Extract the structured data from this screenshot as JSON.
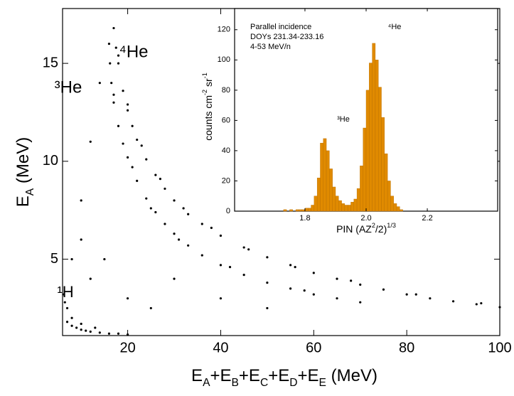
{
  "chart_data": [
    {
      "type": "scatter",
      "xlabel": [
        "E",
        "A",
        "+E",
        "B",
        "+E",
        "C",
        "+E",
        "D",
        "+E",
        "E",
        " (MeV)"
      ],
      "ylabel": [
        "E",
        "A",
        " (MeV)"
      ],
      "label_script": "sub",
      "annotations": [
        "⁴He",
        "³He",
        "¹H"
      ],
      "color": "#000000",
      "xlim": [
        6,
        100
      ],
      "ylim": [
        1.1,
        17.8
      ],
      "xticks": [
        20,
        40,
        60,
        80,
        100
      ],
      "yticks": [
        5,
        10,
        15
      ],
      "x": [
        17,
        17.5,
        18,
        19,
        20,
        21,
        22,
        24,
        26,
        28,
        30,
        33,
        36,
        40,
        45,
        50,
        55,
        60,
        65,
        70,
        75,
        80,
        85,
        90,
        95,
        100,
        18,
        20,
        23,
        27,
        32,
        38,
        46,
        56,
        68,
        82,
        96,
        16,
        16.2,
        16.5,
        17,
        18,
        19,
        20,
        22,
        24,
        26,
        28,
        30,
        33,
        36,
        40,
        45,
        50,
        55,
        60,
        65,
        70,
        17,
        21,
        25,
        31,
        42,
        58,
        7,
        7,
        8,
        9,
        10,
        11,
        12,
        14,
        16,
        18,
        6.5,
        6.3,
        8,
        10,
        13,
        20,
        10,
        12,
        14,
        10,
        30,
        20,
        40,
        15,
        25,
        50,
        12,
        8
      ],
      "y": [
        16.8,
        15.8,
        15,
        13.6,
        12.6,
        11.8,
        11.1,
        10.1,
        9.3,
        8.6,
        8.0,
        7.3,
        6.8,
        6.2,
        5.6,
        5.1,
        4.7,
        4.3,
        4.0,
        3.7,
        3.45,
        3.2,
        3.0,
        2.85,
        2.7,
        2.55,
        15.4,
        12.9,
        10.8,
        9.1,
        7.6,
        6.6,
        5.5,
        4.6,
        3.9,
        3.2,
        2.75,
        16,
        15,
        14,
        13,
        11.8,
        10.9,
        10.2,
        9.0,
        8.1,
        7.4,
        6.8,
        6.3,
        5.7,
        5.2,
        4.7,
        4.2,
        3.8,
        3.5,
        3.2,
        3.0,
        2.8,
        13.4,
        9.7,
        7.6,
        6.0,
        4.6,
        3.4,
        2.5,
        1.8,
        1.6,
        1.5,
        1.4,
        1.35,
        1.3,
        1.25,
        1.2,
        1.2,
        2.8,
        3.2,
        2.0,
        1.7,
        1.5,
        1.15,
        8,
        11,
        14,
        6,
        4,
        3,
        3,
        5,
        2.5,
        2.5,
        4,
        5
      ]
    },
    {
      "type": "histogram",
      "xlabel": [
        "PIN (AZ",
        "2",
        "/2)",
        "1/3"
      ],
      "ylabel": [
        "counts cm",
        "-2",
        " sr",
        "-1"
      ],
      "label_script": "sup",
      "annotations": [
        "Parallel incidence",
        "DOYs 231.34-233.16",
        "4-53 MeV/n",
        "³He",
        "⁴He"
      ],
      "color": "#e08a00",
      "xlim": [
        1.57,
        2.43
      ],
      "ylim": [
        0,
        134
      ],
      "xticks": [
        1.8,
        {
          "value": 2,
          "label": "2.0"
        },
        2.2
      ],
      "yticks": [
        0,
        20,
        40,
        60,
        80,
        100,
        120
      ],
      "bins": [
        1.7,
        1.71,
        1.72,
        1.73,
        1.74,
        1.75,
        1.76,
        1.77,
        1.78,
        1.79,
        1.8,
        1.81,
        1.82,
        1.83,
        1.84,
        1.85,
        1.86,
        1.87,
        1.88,
        1.89,
        1.9,
        1.91,
        1.92,
        1.93,
        1.94,
        1.95,
        1.96,
        1.97,
        1.98,
        1.99,
        2.0,
        2.01,
        2.02,
        2.03,
        2.04,
        2.05,
        2.06,
        2.07,
        2.08,
        2.09,
        2.1,
        2.11,
        2.12
      ],
      "values": [
        0,
        0,
        0,
        1,
        0,
        1,
        0,
        1,
        1,
        1,
        2,
        2,
        4,
        10,
        22,
        45,
        48,
        40,
        28,
        16,
        10,
        7,
        5,
        4,
        4,
        6,
        8,
        15,
        30,
        55,
        80,
        98,
        111,
        100,
        82,
        62,
        38,
        20,
        10,
        5,
        3,
        1
      ]
    }
  ]
}
